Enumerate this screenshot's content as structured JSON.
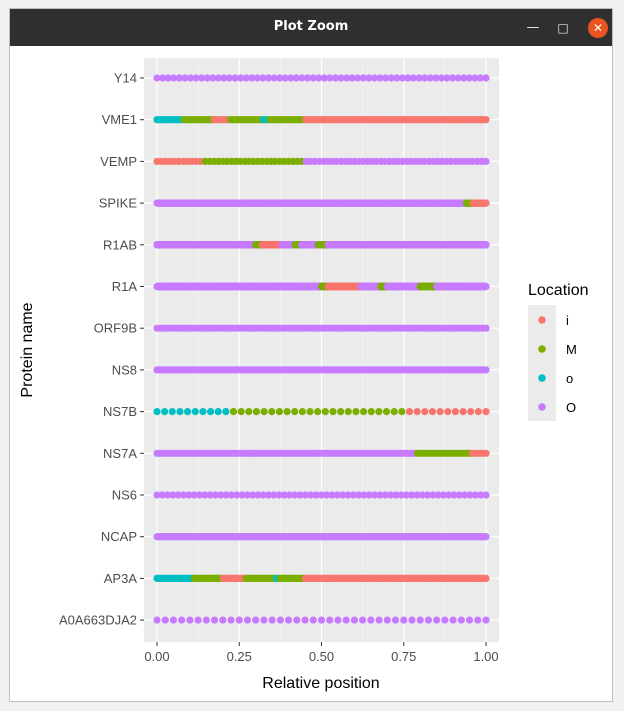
{
  "window": {
    "title": "Plot Zoom",
    "minimize_icon": "minimize-icon",
    "maximize_icon": "maximize-icon",
    "close_icon": "close-icon"
  },
  "colors": {
    "panel": "#ebebeb",
    "grid": "#ffffff",
    "i": "#f8766d",
    "M": "#7cae00",
    "o": "#00bfc4",
    "O": "#c77cff"
  },
  "chart_data": {
    "type": "scatter",
    "title": "",
    "xlabel": "Relative position",
    "ylabel": "Protein name",
    "xlim": [
      0,
      1
    ],
    "x_ticks": [
      "0.00",
      "0.25",
      "0.50",
      "0.75",
      "1.00"
    ],
    "x_tick_values": [
      0,
      0.25,
      0.5,
      0.75,
      1
    ],
    "grid": true,
    "legend": {
      "title": "Location",
      "position": "right",
      "entries": [
        {
          "key": "i",
          "label": "i"
        },
        {
          "key": "M",
          "label": "M"
        },
        {
          "key": "o",
          "label": "o"
        },
        {
          "key": "O",
          "label": "O"
        }
      ]
    },
    "rows": [
      {
        "name": "Y14",
        "points": 60,
        "segments": [
          [
            0,
            1,
            "O"
          ]
        ]
      },
      {
        "name": "VME1",
        "points": 220,
        "segments": [
          [
            0,
            0.08,
            "o"
          ],
          [
            0.08,
            0.17,
            "M"
          ],
          [
            0.17,
            0.22,
            "i"
          ],
          [
            0.22,
            0.32,
            "M"
          ],
          [
            0.32,
            0.34,
            "o"
          ],
          [
            0.34,
            0.45,
            "M"
          ],
          [
            0.45,
            1,
            "i"
          ]
        ]
      },
      {
        "name": "VEMP",
        "points": 76,
        "segments": [
          [
            0,
            0.14,
            "i"
          ],
          [
            0.14,
            0.45,
            "M"
          ],
          [
            0.45,
            1,
            "O"
          ]
        ]
      },
      {
        "name": "SPIKE",
        "points": 1273,
        "segments": [
          [
            0,
            0.94,
            "O"
          ],
          [
            0.94,
            0.96,
            "M"
          ],
          [
            0.96,
            1,
            "i"
          ]
        ]
      },
      {
        "name": "R1AB",
        "points": 7096,
        "segments": [
          [
            0,
            0.3,
            "O"
          ],
          [
            0.3,
            0.32,
            "M"
          ],
          [
            0.32,
            0.38,
            "i"
          ],
          [
            0.38,
            0.42,
            "O"
          ],
          [
            0.42,
            0.44,
            "M"
          ],
          [
            0.44,
            0.49,
            "O"
          ],
          [
            0.49,
            0.52,
            "M"
          ],
          [
            0.52,
            1,
            "O"
          ]
        ]
      },
      {
        "name": "R1A",
        "points": 4405,
        "segments": [
          [
            0,
            0.5,
            "O"
          ],
          [
            0.5,
            0.52,
            "M"
          ],
          [
            0.52,
            0.54,
            "i"
          ],
          [
            0.54,
            0.62,
            "i"
          ],
          [
            0.62,
            0.68,
            "O"
          ],
          [
            0.68,
            0.7,
            "M"
          ],
          [
            0.7,
            0.8,
            "O"
          ],
          [
            0.8,
            0.85,
            "M"
          ],
          [
            0.85,
            1,
            "O"
          ]
        ]
      },
      {
        "name": "ORF9B",
        "points": 98,
        "segments": [
          [
            0,
            1,
            "O"
          ]
        ]
      },
      {
        "name": "NS8",
        "points": 121,
        "segments": [
          [
            0,
            1,
            "O"
          ]
        ]
      },
      {
        "name": "NS7B",
        "points": 44,
        "segments": [
          [
            0,
            0.22,
            "o"
          ],
          [
            0.22,
            0.76,
            "M"
          ],
          [
            0.76,
            1,
            "i"
          ]
        ]
      },
      {
        "name": "NS7A",
        "points": 121,
        "segments": [
          [
            0,
            0.79,
            "O"
          ],
          [
            0.79,
            0.95,
            "M"
          ],
          [
            0.95,
            1,
            "i"
          ]
        ]
      },
      {
        "name": "NS6",
        "points": 63,
        "segments": [
          [
            0,
            1,
            "O"
          ]
        ]
      },
      {
        "name": "NCAP",
        "points": 419,
        "segments": [
          [
            0,
            1,
            "O"
          ]
        ]
      },
      {
        "name": "AP3A",
        "points": 274,
        "segments": [
          [
            0,
            0.11,
            "o"
          ],
          [
            0.11,
            0.2,
            "M"
          ],
          [
            0.2,
            0.27,
            "i"
          ],
          [
            0.27,
            0.36,
            "M"
          ],
          [
            0.36,
            0.37,
            "o"
          ],
          [
            0.37,
            0.45,
            "M"
          ],
          [
            0.45,
            1,
            "i"
          ]
        ]
      },
      {
        "name": "A0A663DJA2",
        "points": 41,
        "segments": [
          [
            0,
            1,
            "O"
          ]
        ]
      }
    ]
  }
}
